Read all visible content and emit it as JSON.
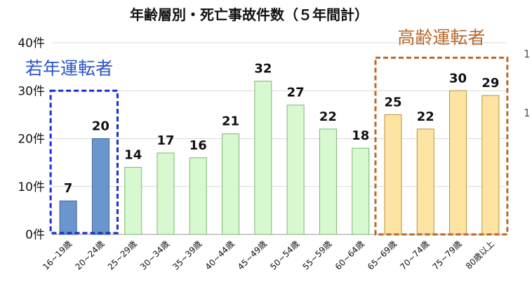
{
  "chart_data": {
    "type": "bar",
    "title": "年齢層別・死亡事故件数（５年間計）",
    "categories": [
      "16~19歳",
      "20~24歳",
      "25~29歳",
      "30~34歳",
      "35~39歳",
      "40~44歳",
      "45~49歳",
      "50~54歳",
      "55~59歳",
      "60~64歳",
      "65~69歳",
      "70~74歳",
      "75~79歳",
      "80歳以上"
    ],
    "values": [
      7,
      20,
      14,
      17,
      16,
      21,
      32,
      27,
      22,
      18,
      25,
      22,
      30,
      29
    ],
    "ylim": [
      0,
      40
    ],
    "yticks": [
      "0件",
      "10件",
      "20件",
      "30件",
      "40件"
    ],
    "ytick_values": [
      0,
      10,
      20,
      30,
      40
    ],
    "grid": true,
    "groups": [
      {
        "label": "若年運転者",
        "start": 0,
        "end": 1,
        "fill": "#6a95cd",
        "stroke": "#3d64a0",
        "box_color": "#1a2fd0",
        "text_color": "#2b54c8"
      },
      {
        "label": "",
        "start": 2,
        "end": 9,
        "fill": "#d8f8d0",
        "stroke": "#7ab870"
      },
      {
        "label": "高齢運転者",
        "start": 10,
        "end": 13,
        "fill": "#fde4a2",
        "stroke": "#b8923a",
        "box_color": "#b86a2c",
        "text_color": "#b8692e"
      }
    ],
    "clipped_right_axis": [
      "1",
      "1"
    ]
  }
}
